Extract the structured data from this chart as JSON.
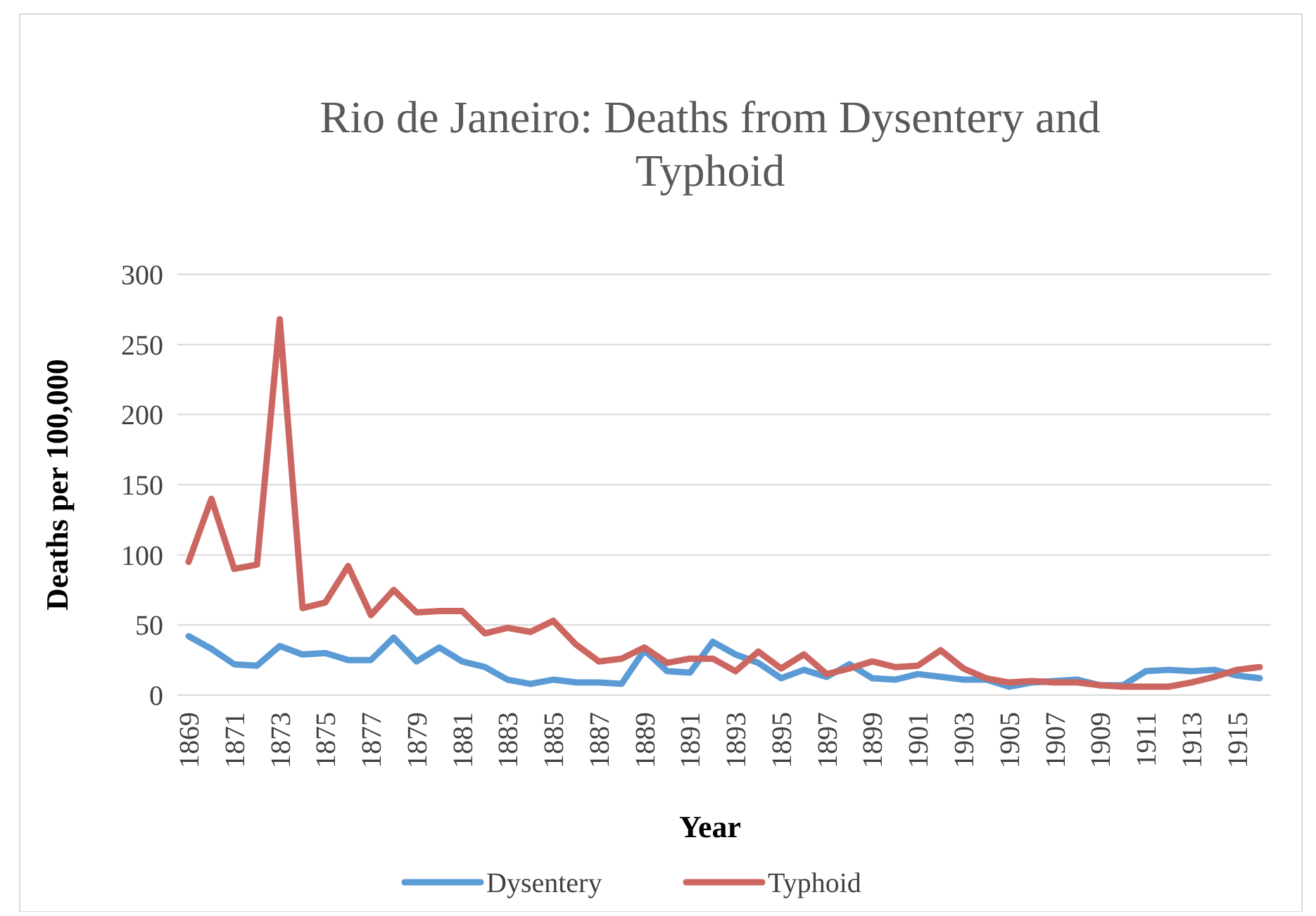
{
  "chart_data": {
    "type": "line",
    "title": "Rio de Janeiro: Deaths from Dysentery and Typhoid",
    "xlabel": "Year",
    "ylabel": "Deaths per 100,000",
    "categories": [
      "1869",
      null,
      "1871",
      null,
      "1873",
      null,
      "1875",
      null,
      "1877",
      null,
      "1879",
      null,
      "1881",
      null,
      "1883",
      null,
      "1885",
      null,
      "1887",
      null,
      "1889",
      null,
      "1891",
      null,
      "1893",
      null,
      "1895",
      null,
      "1897",
      null,
      "1899",
      null,
      "1901",
      null,
      "1903",
      null,
      "1905",
      null,
      "1907",
      null,
      "1909",
      null,
      "1911",
      null,
      "1913",
      null,
      "1915",
      null
    ],
    "series": [
      {
        "name": "Dysentery",
        "color": "#5b9bd5",
        "values": [
          42,
          33,
          22,
          21,
          35,
          29,
          30,
          25,
          25,
          41,
          24,
          34,
          24,
          20,
          11,
          8,
          11,
          9,
          9,
          8,
          32,
          17,
          16,
          38,
          29,
          23,
          12,
          18,
          13,
          22,
          12,
          11,
          15,
          13,
          11,
          11,
          6,
          9,
          10,
          11,
          7,
          7,
          17,
          18,
          17,
          18,
          14,
          12
        ]
      },
      {
        "name": "Typhoid",
        "color": "#cc6660",
        "values": [
          95,
          140,
          90,
          93,
          268,
          62,
          66,
          92,
          57,
          75,
          59,
          60,
          60,
          44,
          48,
          45,
          53,
          36,
          24,
          26,
          34,
          23,
          26,
          26,
          17,
          31,
          19,
          29,
          15,
          19,
          24,
          20,
          21,
          32,
          19,
          12,
          9,
          10,
          9,
          9,
          7,
          6,
          6,
          6,
          9,
          13,
          18,
          20
        ]
      }
    ],
    "ylim": [
      0,
      300
    ],
    "yticks": [
      0,
      50,
      100,
      150,
      200,
      250,
      300
    ],
    "grid": "y",
    "legend": "bottom",
    "marker": "none",
    "line_style": "solid"
  }
}
